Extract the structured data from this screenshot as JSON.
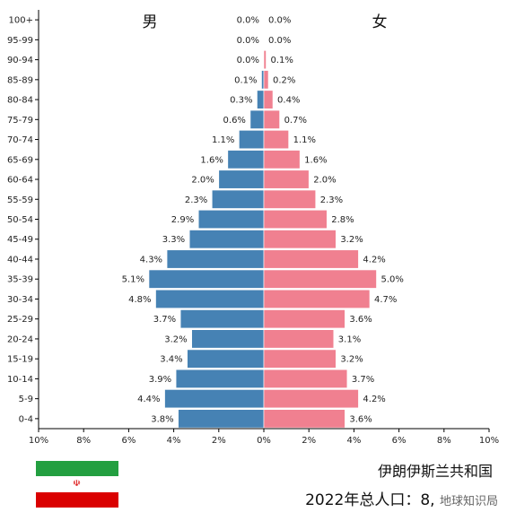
{
  "chart_data": {
    "type": "bar",
    "subtype": "population-pyramid",
    "categories": [
      "0-4",
      "5-9",
      "10-14",
      "15-19",
      "20-24",
      "25-29",
      "30-34",
      "35-39",
      "40-44",
      "45-49",
      "50-54",
      "55-59",
      "60-64",
      "65-69",
      "70-74",
      "75-79",
      "80-84",
      "85-89",
      "90-94",
      "95-99",
      "100+"
    ],
    "series": [
      {
        "name": "男",
        "side": "left",
        "color": "#4682b4",
        "values": [
          3.8,
          4.4,
          3.9,
          3.4,
          3.2,
          3.7,
          4.8,
          5.1,
          4.3,
          3.3,
          2.9,
          2.3,
          2.0,
          1.6,
          1.1,
          0.6,
          0.3,
          0.1,
          0.0,
          0.0,
          0.0
        ]
      },
      {
        "name": "女",
        "side": "right",
        "color": "#f08090",
        "values": [
          3.6,
          4.2,
          3.7,
          3.2,
          3.1,
          3.6,
          4.7,
          5.0,
          4.2,
          3.2,
          2.8,
          2.3,
          2.0,
          1.6,
          1.1,
          0.7,
          0.4,
          0.2,
          0.1,
          0.0,
          0.0
        ]
      }
    ],
    "value_labels": {
      "male": [
        "3.8%",
        "4.4%",
        "3.9%",
        "3.4%",
        "3.2%",
        "3.7%",
        "4.8%",
        "5.1%",
        "4.3%",
        "3.3%",
        "2.9%",
        "2.3%",
        "2.0%",
        "1.6%",
        "1.1%",
        "0.6%",
        "0.3%",
        "0.1%",
        "0.0%",
        "0.0%",
        "0.0%"
      ],
      "female": [
        "3.6%",
        "4.2%",
        "3.7%",
        "3.2%",
        "3.1%",
        "3.6%",
        "4.7%",
        "5.0%",
        "4.2%",
        "3.2%",
        "2.8%",
        "2.3%",
        "2.0%",
        "1.6%",
        "1.1%",
        "0.7%",
        "0.4%",
        "0.2%",
        "0.1%",
        "0.0%",
        "0.0%"
      ]
    },
    "xlim": [
      -10,
      10
    ],
    "x_ticks": [
      -10,
      -8,
      -6,
      -4,
      -2,
      0,
      2,
      4,
      6,
      8,
      10
    ],
    "x_tick_labels": [
      "10%",
      "8%",
      "6%",
      "4%",
      "2%",
      "0%",
      "2%",
      "4%",
      "6%",
      "8%",
      "10%"
    ],
    "sex_labels": {
      "male": "男",
      "female": "女"
    },
    "grid": false
  },
  "footer": {
    "country": "伊朗伊斯兰共和国",
    "population_label": "2022年总人口：",
    "population_value": "8,",
    "watermark": "地球知识局"
  },
  "flag": {
    "colors": {
      "green": "#239f40",
      "white": "#ffffff",
      "red": "#da0000"
    },
    "emblem_icon": "iran-emblem-icon",
    "emblem_glyph": "☫"
  }
}
